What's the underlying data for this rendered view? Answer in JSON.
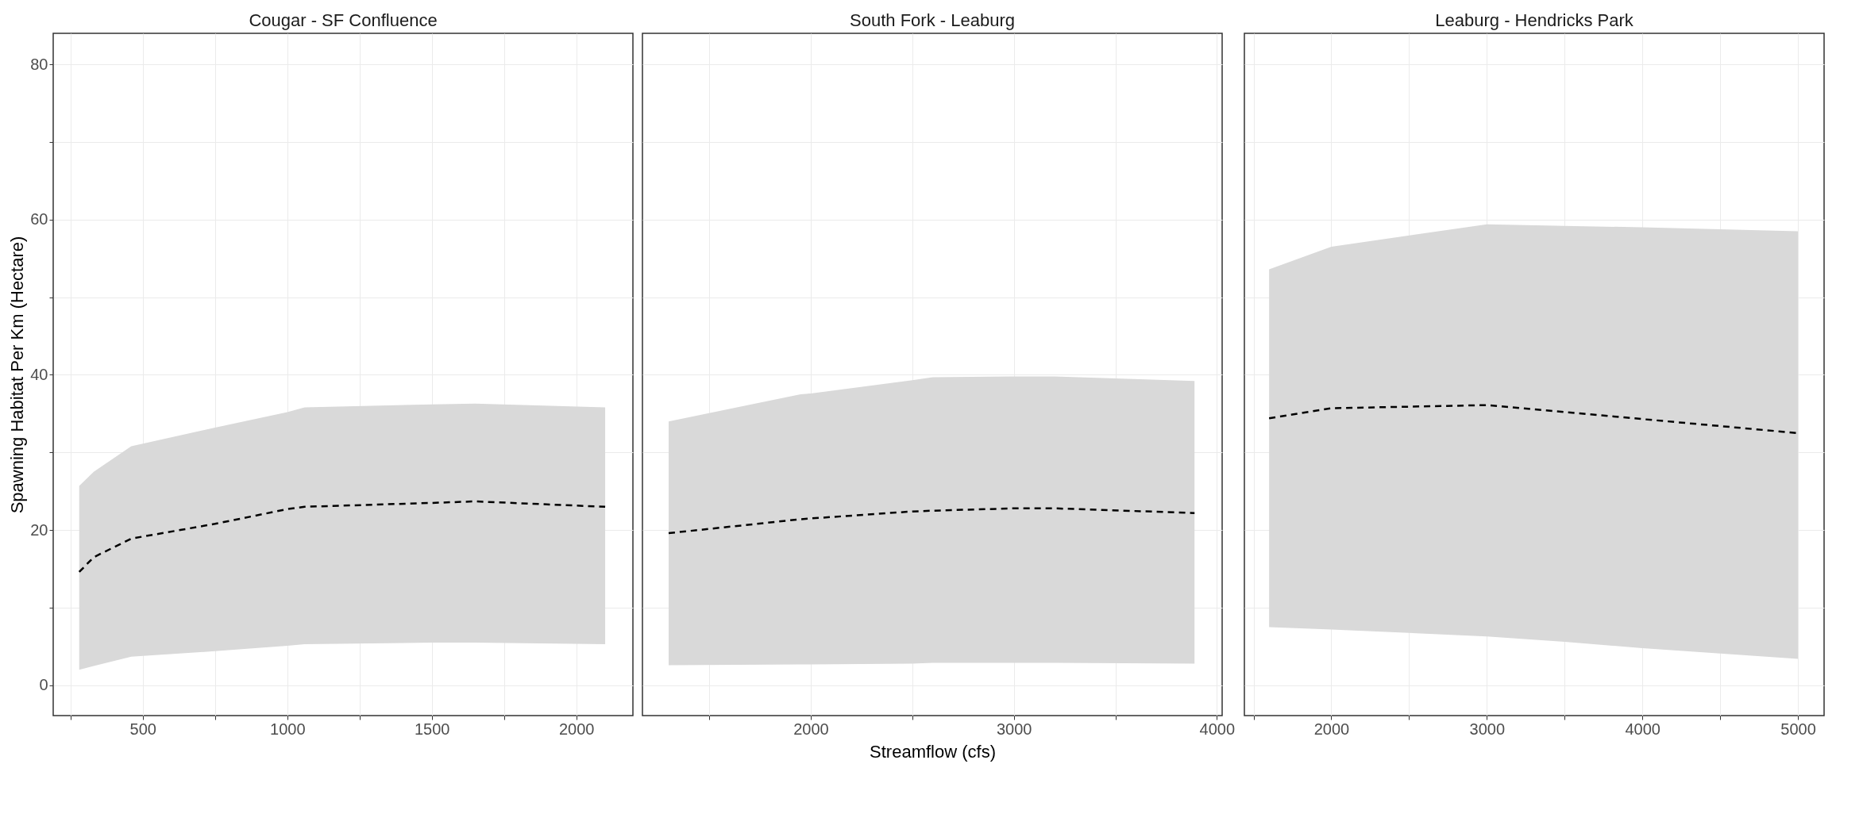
{
  "chart_data": [
    {
      "type": "line",
      "title": "Cougar - SF Confluence",
      "ylabel": "Spawning Habitat Per Km (Hectare)",
      "xlim": [
        190,
        2196
      ],
      "ylim": [
        -3.9,
        84
      ],
      "xticks": [
        {
          "value": 250,
          "label": null
        },
        500,
        {
          "value": 750,
          "label": null
        },
        1000,
        {
          "value": 1250,
          "label": null
        },
        1500,
        {
          "value": 1750,
          "label": null
        },
        2000
      ],
      "yticks": [
        0,
        {
          "value": 10,
          "label": null
        },
        20,
        {
          "value": 30,
          "label": null
        },
        40,
        {
          "value": 50,
          "label": null
        },
        60,
        {
          "value": 70,
          "label": null
        },
        80
      ],
      "grid": true,
      "line_style": "dashed",
      "series": [
        {
          "color": "#000000",
          "x": [
            280,
            330,
            460,
            750,
            1000,
            1060,
            1500,
            1650,
            2100
          ],
          "values": [
            14.6,
            16.5,
            18.9,
            20.8,
            22.7,
            23.0,
            23.5,
            23.7,
            23.0
          ],
          "lower": [
            2.0,
            2.5,
            3.7,
            4.4,
            5.1,
            5.3,
            5.5,
            5.5,
            5.3
          ],
          "upper": [
            25.7,
            27.5,
            30.8,
            33.2,
            35.2,
            35.8,
            36.2,
            36.3,
            35.8
          ]
        }
      ]
    },
    {
      "type": "line",
      "title": "South Fork - Leaburg",
      "xlabel": "Streamflow (cfs)",
      "xlim": [
        1171,
        4026
      ],
      "ylim": [
        -3.9,
        84
      ],
      "tick_labels": "x",
      "xticks": [
        {
          "value": 1500,
          "label": null
        },
        2000,
        {
          "value": 2500,
          "label": null
        },
        3000,
        {
          "value": 3500,
          "label": null
        },
        4000
      ],
      "yticks": [
        0,
        {
          "value": 10,
          "label": null
        },
        20,
        {
          "value": 30,
          "label": null
        },
        40,
        {
          "value": 50,
          "label": null
        },
        60,
        {
          "value": 70,
          "label": null
        },
        80
      ],
      "grid": true,
      "line_style": "dashed",
      "series": [
        {
          "color": "#000000",
          "x": [
            1300,
            1950,
            2000,
            2500,
            2600,
            3000,
            3200,
            3890
          ],
          "values": [
            19.6,
            21.4,
            21.5,
            22.4,
            22.5,
            22.8,
            22.8,
            22.2
          ],
          "lower": [
            2.6,
            2.7,
            2.7,
            2.8,
            2.9,
            2.9,
            2.9,
            2.8
          ],
          "upper": [
            34.0,
            37.5,
            37.6,
            39.3,
            39.7,
            39.8,
            39.8,
            39.2
          ]
        }
      ]
    },
    {
      "type": "line",
      "title": "Leaburg - Hendricks Park",
      "xlim": [
        1441,
        5168
      ],
      "ylim": [
        -3.9,
        84
      ],
      "tick_labels": "x",
      "xticks": [
        {
          "value": 1500,
          "label": null
        },
        2000,
        {
          "value": 2500,
          "label": null
        },
        3000,
        {
          "value": 3500,
          "label": null
        },
        4000,
        {
          "value": 4500,
          "label": null
        },
        5000
      ],
      "yticks": [
        0,
        {
          "value": 10,
          "label": null
        },
        20,
        {
          "value": 30,
          "label": null
        },
        40,
        {
          "value": 50,
          "label": null
        },
        60,
        {
          "value": 70,
          "label": null
        },
        80
      ],
      "grid": true,
      "line_style": "dashed",
      "series": [
        {
          "color": "#000000",
          "x": [
            1600,
            2000,
            3000,
            3500,
            4000,
            5000
          ],
          "values": [
            34.4,
            35.7,
            36.1,
            35.2,
            34.3,
            32.5
          ],
          "lower": [
            7.5,
            7.2,
            6.3,
            5.6,
            4.8,
            3.4
          ],
          "upper": [
            53.6,
            56.5,
            59.4,
            59.2,
            59.0,
            58.5
          ]
        }
      ]
    }
  ]
}
